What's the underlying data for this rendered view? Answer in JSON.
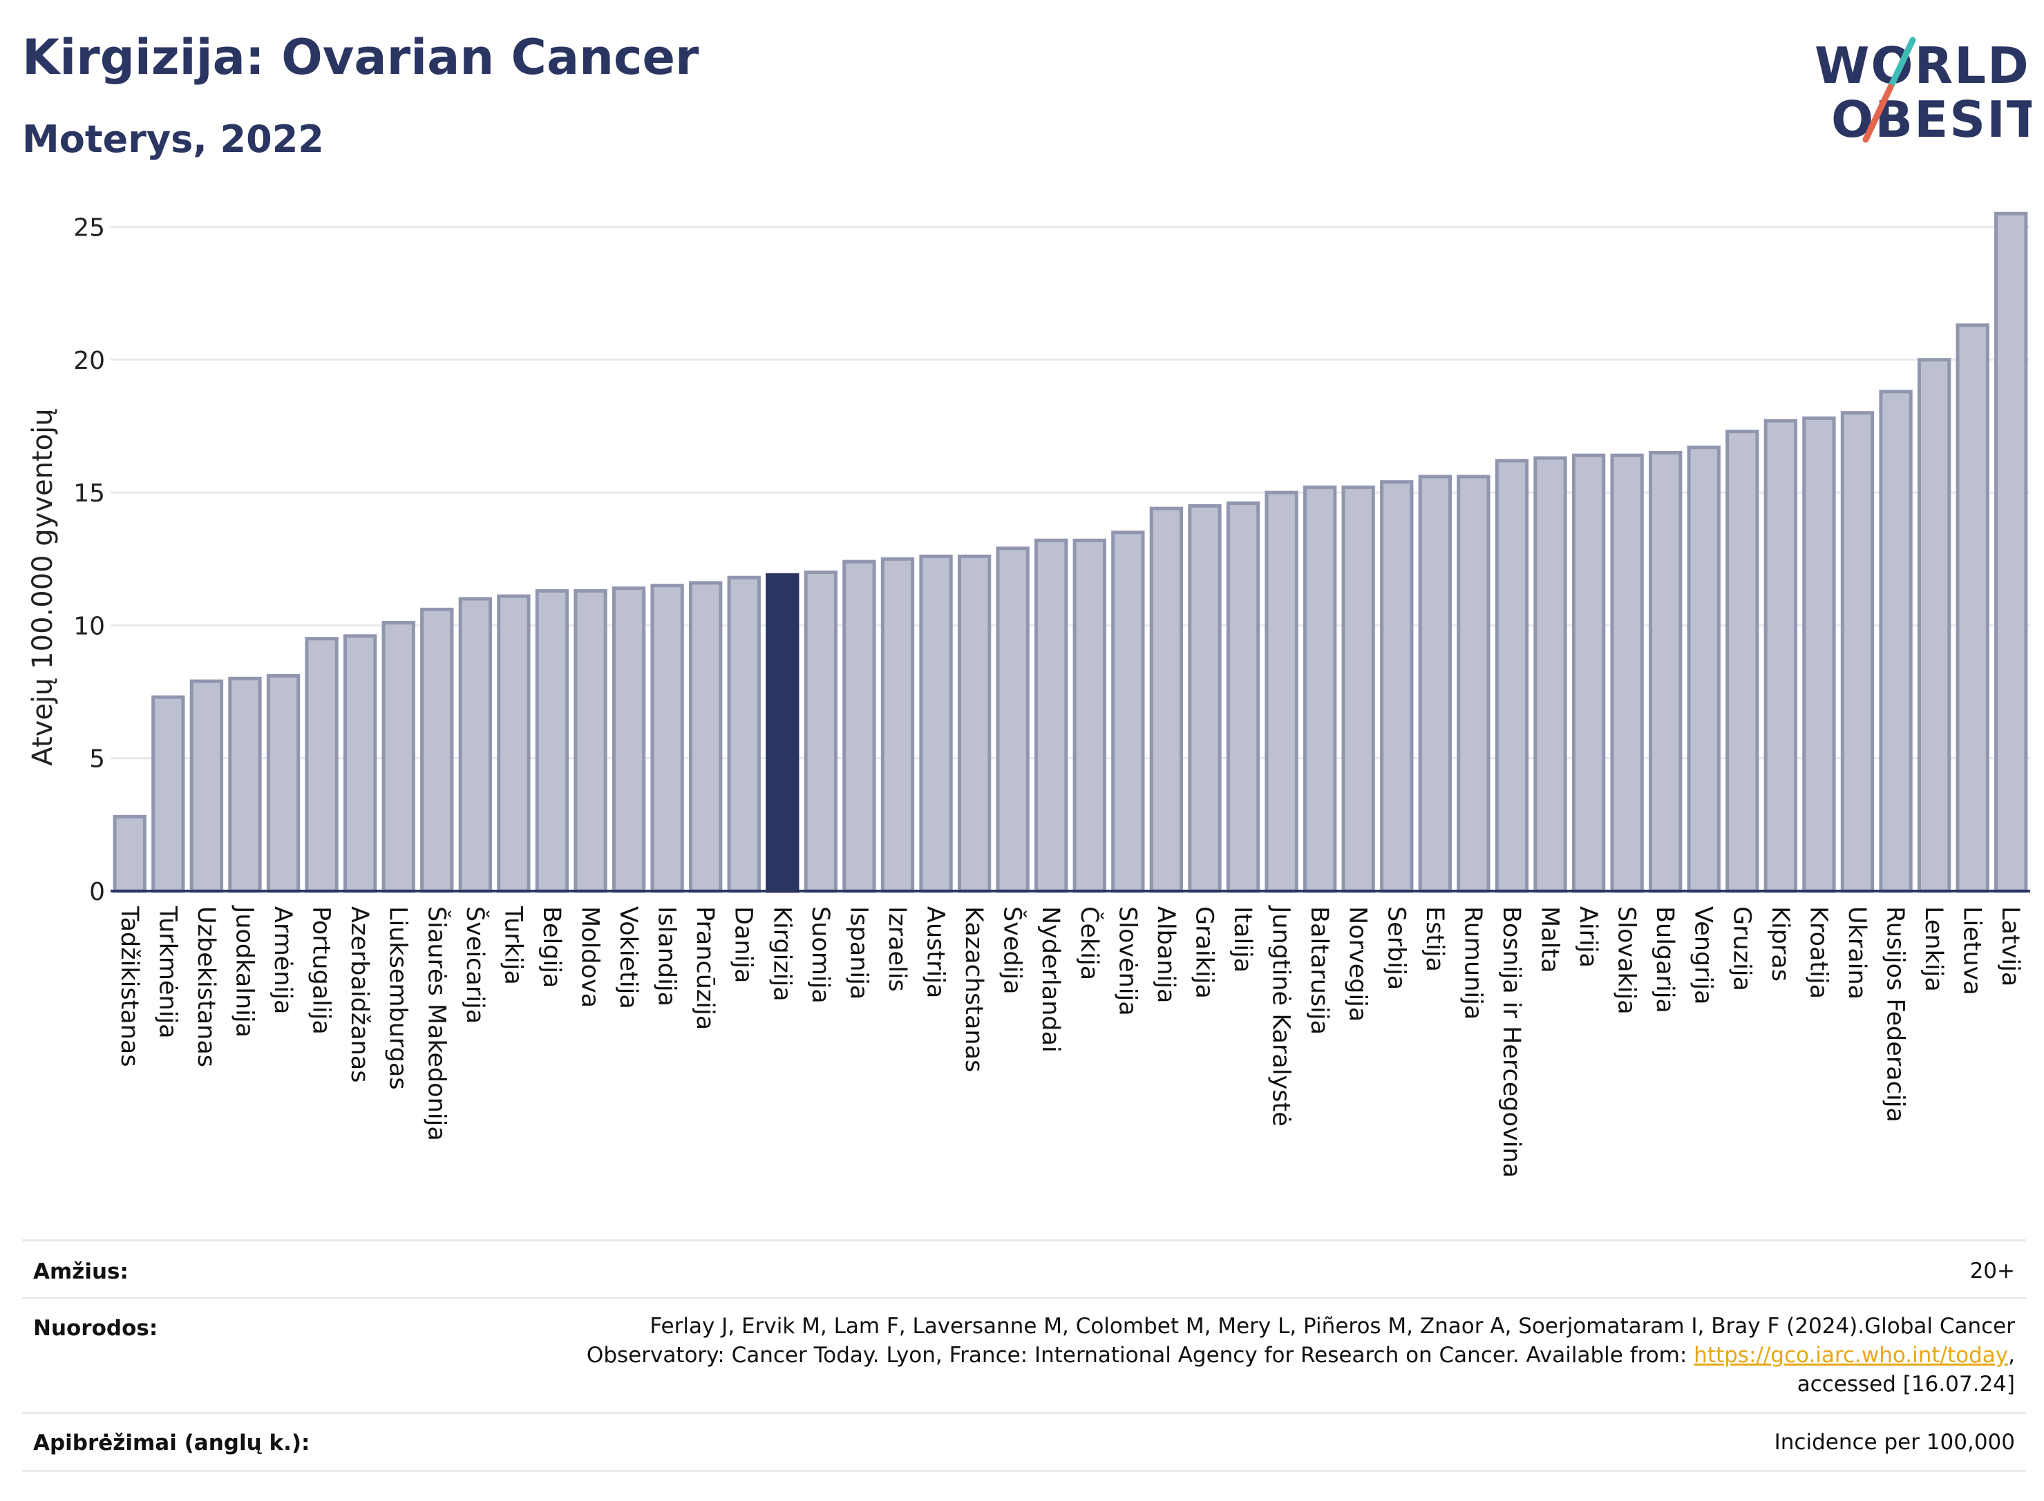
{
  "header": {
    "title": "Kirgizija: Ovarian Cancer",
    "subtitle": "Moterys, 2022"
  },
  "logo": {
    "line1": "WORLD",
    "line2": "OBESITY",
    "accent_colors": [
      "#3fbcb6",
      "#e4664f"
    ]
  },
  "chart_data": {
    "type": "bar",
    "ylabel": "Atvejų 100.000 gyventojų",
    "ylim": [
      0,
      26
    ],
    "yticks": [
      0,
      5,
      10,
      15,
      20,
      25
    ],
    "grid": true,
    "highlight": "Kirgizija",
    "colors": {
      "bar": "#bcc0d0",
      "bar_border": "#9096ae",
      "highlight": "#2b3562"
    },
    "categories": [
      "Tadžikistanas",
      "Turkmėnija",
      "Uzbekistanas",
      "Juodkalnija",
      "Armėnija",
      "Portugalija",
      "Azerbaidžanas",
      "Liuksemburgas",
      "Šiaurės Makedonija",
      "Šveicarija",
      "Turkija",
      "Belgija",
      "Moldova",
      "Vokietija",
      "Islandija",
      "Prancūzija",
      "Danija",
      "Kirgizija",
      "Suomija",
      "Ispanija",
      "Izraelis",
      "Austrija",
      "Kazachstanas",
      "Švedija",
      "Nyderlandai",
      "Čekija",
      "Slovėnija",
      "Albanija",
      "Graikija",
      "Italija",
      "Jungtinė Karalystė",
      "Baltarusija",
      "Norvegija",
      "Serbija",
      "Estija",
      "Rumunija",
      "Bosnija ir Hercegovina",
      "Malta",
      "Airija",
      "Slovakija",
      "Bulgarija",
      "Vengrija",
      "Gruzija",
      "Kipras",
      "Kroatija",
      "Ukraina",
      "Rusijos Federacija",
      "Lenkija",
      "Lietuva",
      "Latvija"
    ],
    "values": [
      2.8,
      7.3,
      7.9,
      8.0,
      8.1,
      9.5,
      9.6,
      10.1,
      10.6,
      11.0,
      11.1,
      11.3,
      11.3,
      11.4,
      11.5,
      11.6,
      11.8,
      11.9,
      12.0,
      12.4,
      12.5,
      12.6,
      12.6,
      12.9,
      13.2,
      13.2,
      13.5,
      14.4,
      14.5,
      14.6,
      15.0,
      15.2,
      15.2,
      15.4,
      15.6,
      15.6,
      16.2,
      16.3,
      16.4,
      16.4,
      16.5,
      16.7,
      17.3,
      17.7,
      17.8,
      18.0,
      18.8,
      20.0,
      21.3,
      25.5
    ]
  },
  "info": {
    "age_label": "Amžius:",
    "age_value": "20+",
    "refs_label": "Nuorodos:",
    "refs_line1": "Ferlay J, Ervik M, Lam F, Laversanne M, Colombet M, Mery L, Piñeros M, Znaor A, Soerjomataram I, Bray F (2024).Global Cancer",
    "refs_line2_prefix": "Observatory: Cancer Today. Lyon, France: International Agency for Research on Cancer. Available from: ",
    "refs_link": "https://gco.iarc.who.int/today",
    "refs_line2_suffix": ",",
    "refs_line3": "accessed [16.07.24]",
    "defs_label": "Apibrėžimai (anglų k.):",
    "defs_value": "Incidence per 100,000"
  }
}
